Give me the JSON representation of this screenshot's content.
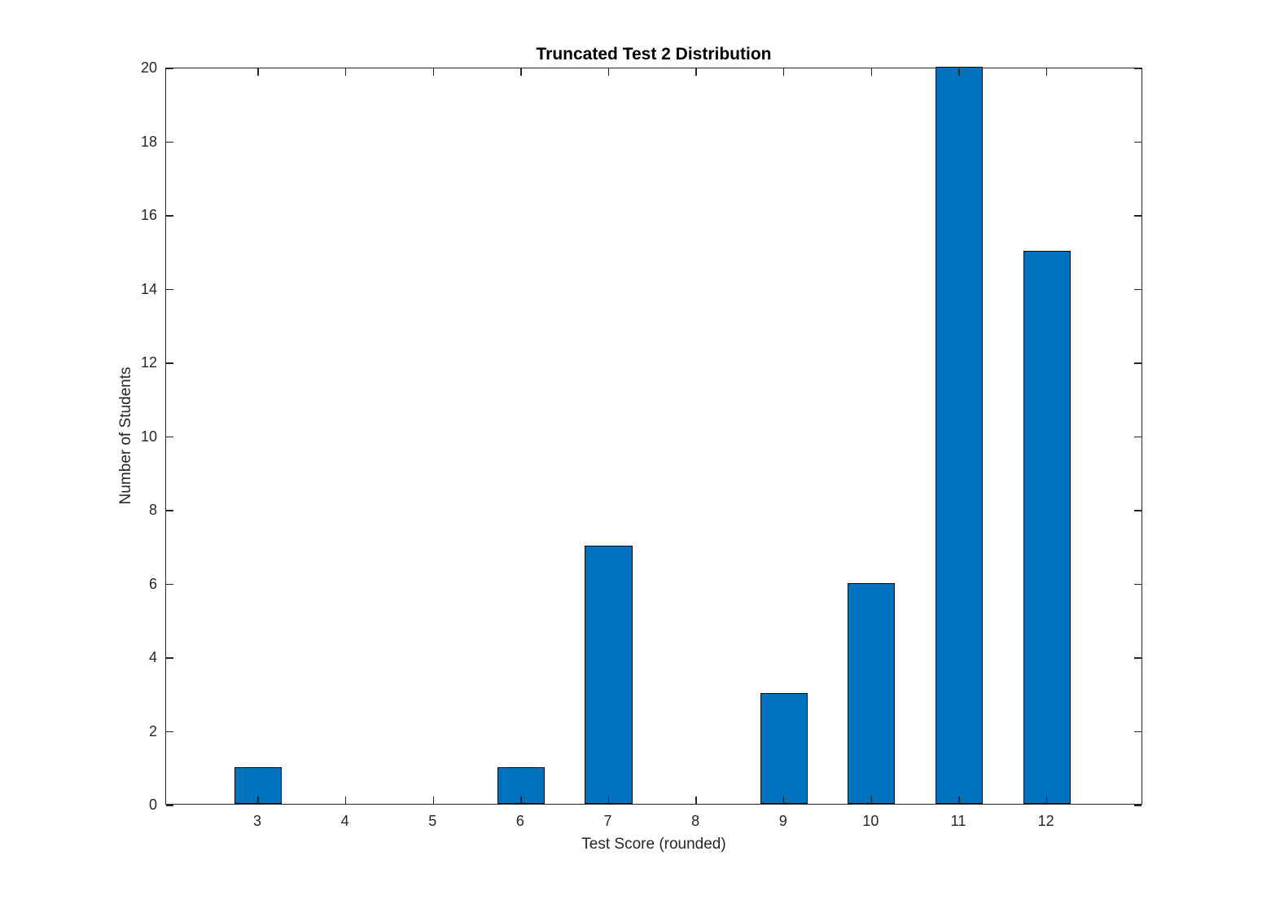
{
  "chart_data": {
    "type": "bar",
    "title": "Truncated Test 2 Distribution",
    "xlabel": "Test Score (rounded)",
    "ylabel": "Number of Students",
    "categories": [
      3,
      4,
      5,
      6,
      7,
      8,
      9,
      10,
      11,
      12
    ],
    "values": [
      1,
      0,
      0,
      1,
      7,
      0,
      3,
      6,
      20,
      15
    ],
    "yticks": [
      0,
      2,
      4,
      6,
      8,
      10,
      12,
      14,
      16,
      18,
      20
    ],
    "xlim": [
      1.95,
      13.1
    ],
    "ylim": [
      0,
      20
    ],
    "bar_width_units": 0.54,
    "bar_color": "#0072BD",
    "bar_edge_color": "#0b0b14",
    "axis_color": "#262626",
    "grid": "off",
    "legend": "none",
    "note": "bar at score 11 is truncated at the top axis limit of 20"
  }
}
